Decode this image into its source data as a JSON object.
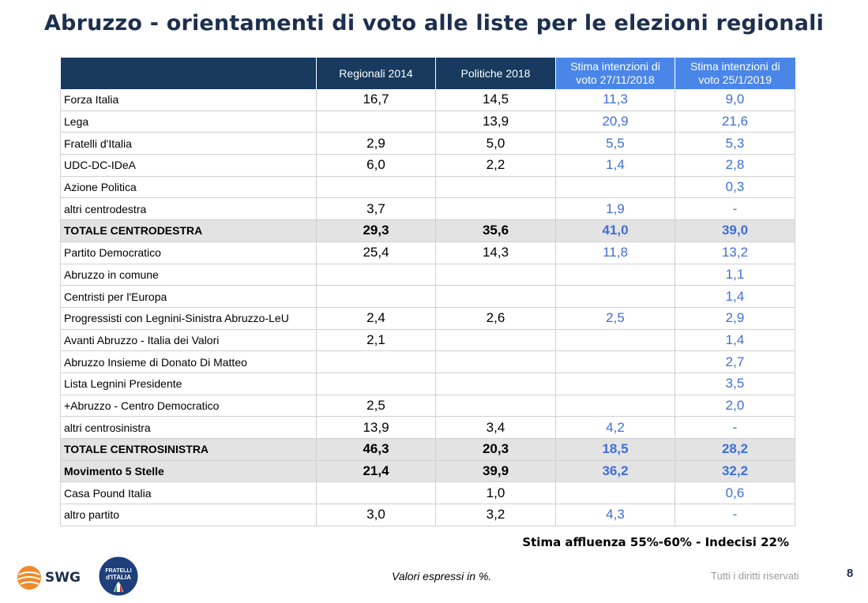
{
  "title": "Abruzzo - orientamenti di voto alle liste per le elezioni regionali",
  "chart_data": {
    "type": "table",
    "columns": [
      "",
      "Regionali 2014",
      "Politiche 2018",
      "Stima intenzioni di voto 27/11/2018",
      "Stima intenzioni di voto 25/1/2019"
    ],
    "header_lines": [
      [
        ""
      ],
      [
        "Regionali 2014"
      ],
      [
        "Politiche 2018"
      ],
      [
        "Stima intenzioni di",
        "voto 27/11/2018"
      ],
      [
        "Stima intenzioni di",
        "voto 25/1/2019"
      ]
    ],
    "rows": [
      {
        "label": "Forza Italia",
        "values": [
          "16,7",
          "14,5",
          "11,3",
          "9,0"
        ],
        "total": false
      },
      {
        "label": "Lega",
        "values": [
          "",
          "13,9",
          "20,9",
          "21,6"
        ],
        "total": false
      },
      {
        "label": "Fratelli d'Italia",
        "values": [
          "2,9",
          "5,0",
          "5,5",
          "5,3"
        ],
        "total": false
      },
      {
        "label": "UDC-DC-IDeA",
        "values": [
          "6,0",
          "2,2",
          "1,4",
          "2,8"
        ],
        "total": false
      },
      {
        "label": "Azione Politica",
        "values": [
          "",
          "",
          "",
          "0,3"
        ],
        "total": false
      },
      {
        "label": "altri centrodestra",
        "values": [
          "3,7",
          "",
          "1,9",
          "-"
        ],
        "total": false
      },
      {
        "label": "TOTALE CENTRODESTRA",
        "values": [
          "29,3",
          "35,6",
          "41,0",
          "39,0"
        ],
        "total": true
      },
      {
        "label": "Partito Democratico",
        "values": [
          "25,4",
          "14,3",
          "11,8",
          "13,2"
        ],
        "total": false
      },
      {
        "label": "Abruzzo in comune",
        "values": [
          "",
          "",
          "",
          "1,1"
        ],
        "total": false
      },
      {
        "label": "Centristi per l'Europa",
        "values": [
          "",
          "",
          "",
          "1,4"
        ],
        "total": false
      },
      {
        "label": "Progressisti con Legnini-Sinistra Abruzzo-LeU",
        "values": [
          "2,4",
          "2,6",
          "2,5",
          "2,9"
        ],
        "total": false
      },
      {
        "label": "Avanti Abruzzo - Italia dei Valori",
        "values": [
          "2,1",
          "",
          "",
          "1,4"
        ],
        "total": false
      },
      {
        "label": "Abruzzo Insieme di Donato Di Matteo",
        "values": [
          "",
          "",
          "",
          "2,7"
        ],
        "total": false
      },
      {
        "label": "Lista Legnini Presidente",
        "values": [
          "",
          "",
          "",
          "3,5"
        ],
        "total": false
      },
      {
        "label": "+Abruzzo - Centro Democratico",
        "values": [
          "2,5",
          "",
          "",
          "2,0"
        ],
        "total": false
      },
      {
        "label": "altri centrosinistra",
        "values": [
          "13,9",
          "3,4",
          "4,2",
          "-"
        ],
        "total": false
      },
      {
        "label": "TOTALE CENTROSINISTRA",
        "values": [
          "46,3",
          "20,3",
          "18,5",
          "28,2"
        ],
        "total": true
      },
      {
        "label": "Movimento 5 Stelle",
        "values": [
          "21,4",
          "39,9",
          "36,2",
          "32,2"
        ],
        "total": true
      },
      {
        "label": "Casa Pound Italia",
        "values": [
          "",
          "1,0",
          "",
          "0,6"
        ],
        "total": false
      },
      {
        "label": "altro partito",
        "values": [
          "3,0",
          "3,2",
          "4,3",
          "-"
        ],
        "total": false
      }
    ],
    "colors": {
      "header_dark": "#173a5e",
      "header_blue": "#4a86e8",
      "estimate_text": "#3f6fd6",
      "total_row_bg": "#e3e3e3"
    }
  },
  "turnout": "Stima affluenza 55%-60% - Indecisi 22%",
  "footnote": "Valori espressi in %.",
  "rights": "Tutti i diritti riservati",
  "page_number": "8",
  "logos": {
    "swg": "SWG",
    "fdi_line1": "FRATELLI",
    "fdi_line2": "d'ITALIA"
  }
}
